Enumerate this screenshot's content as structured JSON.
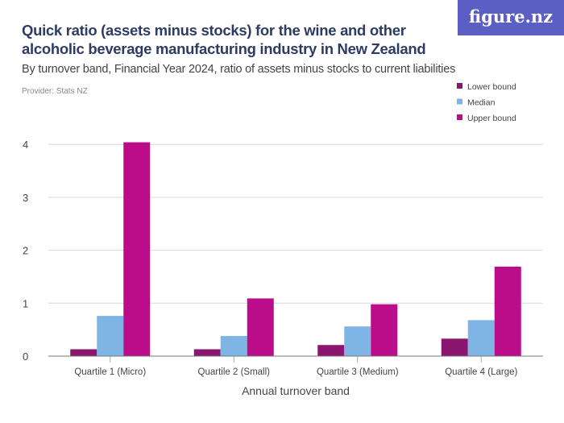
{
  "title": "Quick ratio (assets minus stocks) for the wine and other alcoholic beverage manufacturing industry in New Zealand",
  "subtitle": "By turnover band, Financial Year 2024, ratio of assets minus stocks to current liabilities",
  "provider": "Provider: Stats NZ",
  "logo": "figure.nz",
  "chart_data": {
    "type": "bar",
    "categories": [
      "Quartile 1 (Micro)",
      "Quartile 2 (Small)",
      "Quartile 3 (Medium)",
      "Quartile 4 (Large)"
    ],
    "series": [
      {
        "name": "Lower bound",
        "color": "#8a166f",
        "values": [
          0.13,
          0.13,
          0.21,
          0.33
        ]
      },
      {
        "name": "Median",
        "color": "#7eb5e4",
        "values": [
          0.76,
          0.38,
          0.56,
          0.68
        ]
      },
      {
        "name": "Upper bound",
        "color": "#bb0c89",
        "values": [
          4.04,
          1.09,
          0.98,
          1.69
        ]
      }
    ],
    "xlabel": "Annual turnover band",
    "ylabel": "",
    "ylim": [
      0,
      4
    ],
    "yticks": [
      0,
      1,
      2,
      3,
      4
    ],
    "grid": true,
    "legend": "top-right"
  }
}
